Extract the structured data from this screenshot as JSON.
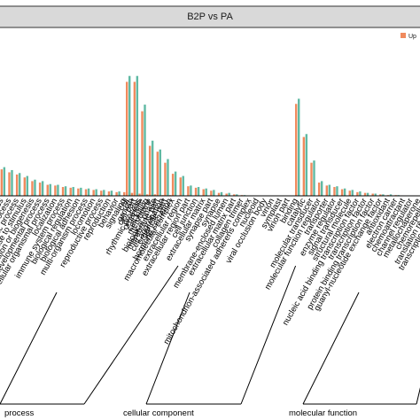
{
  "chart_data": {
    "type": "bar",
    "title": "B2P vs PA",
    "legend": {
      "position": "top-right",
      "entries": [
        "Up"
      ]
    },
    "colors": {
      "Up": "#f08a5d",
      "Down": "#5fb9a3",
      "title_strip": "#d9d9d9",
      "axis": "#000000"
    },
    "groups": [
      {
        "name": "biological process",
        "display_name": "process",
        "categories": [
          "",
          "cellular process",
          "single-organism process",
          "metabolic process",
          "response to stimulus",
          "cellular component organization or biogenesis",
          "developmental process",
          "multicellular organismal process",
          "localization",
          "immune system process",
          "biological regulation",
          "biological adhesion",
          "multi-organism process",
          "locomotion",
          "reproductive process",
          "reproduction",
          "behavior",
          "signaling",
          "growth",
          "rhythmic process",
          "cell killing",
          "biological phase",
          "cell aggregation",
          "hormone secretion"
        ],
        "series_values": {
          "Up": [
            36,
            36,
            32,
            29,
            25,
            20,
            18,
            15,
            14,
            12,
            11,
            10,
            9,
            8,
            7,
            6,
            5,
            5,
            4,
            3,
            2,
            2,
            1,
            1
          ],
          "Down": [
            39,
            39,
            35,
            31,
            27,
            22,
            20,
            16,
            15,
            13,
            12,
            11,
            10,
            9,
            8,
            7,
            6,
            5,
            4,
            3,
            2,
            2,
            1,
            1
          ]
        }
      },
      {
        "name": "cellular component",
        "display_name": "cellular component",
        "categories": [
          "cell",
          "cell part",
          "organelle",
          "membrane",
          "membrane part",
          "organelle part",
          "macromolecular complex",
          "extracellular region",
          "extracellular region part",
          "cell junction",
          "extracellular matrix",
          "synapse part",
          "synapse",
          "membrane-enclosed lumen",
          "extracellular matrix part",
          "collagen trimer",
          "mitochondrion-associated adherens complex",
          "nucleoid",
          "viral occlusion body",
          "virion",
          "symplast",
          "virion part"
        ],
        "series_values": {
          "Up": [
            155,
            155,
            115,
            68,
            60,
            45,
            30,
            25,
            13,
            11,
            9,
            7,
            4,
            3,
            2,
            1,
            0,
            0,
            0,
            0,
            0,
            0
          ],
          "Down": [
            163,
            163,
            124,
            75,
            63,
            50,
            33,
            27,
            14,
            12,
            10,
            8,
            5,
            4,
            2,
            1,
            0,
            0,
            0,
            0,
            0,
            0
          ]
        }
      },
      {
        "name": "molecular function",
        "display_name": "molecular function",
        "categories": [
          "binding",
          "catalytic",
          "molecular transducer",
          "molecular function regulator",
          "transporter",
          "enzyme regulator",
          "signal transducer",
          "structural molecule",
          "nucleic acid binding transcription factor",
          "transcription factor",
          "protein binding transcription factor",
          "guanyl-nucleotide exchange factor",
          "antioxidant",
          "electron carrier",
          "chemoattractant",
          "channel regulator",
          "metallochaperone",
          "chemorepellent",
          "translation regulator",
          "transcription regulator"
        ],
        "series_values": {
          "Up": [
            125,
            80,
            45,
            18,
            14,
            12,
            9,
            7,
            5,
            4,
            3,
            2,
            1,
            1,
            0,
            0,
            0,
            0,
            0,
            0
          ],
          "Down": [
            132,
            84,
            48,
            20,
            15,
            13,
            10,
            8,
            6,
            4,
            3,
            2,
            2,
            1,
            0,
            0,
            0,
            0,
            0,
            0
          ]
        }
      }
    ]
  }
}
